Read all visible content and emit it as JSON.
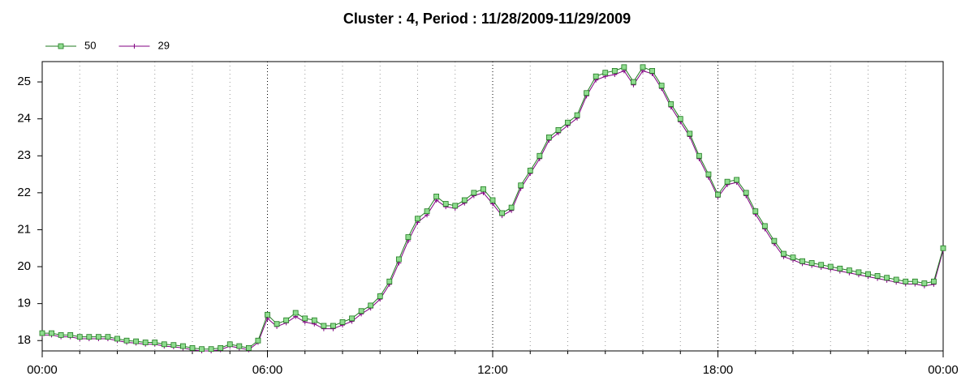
{
  "chart_data": {
    "type": "line",
    "title": "Cluster : 4, Period : 11/28/2009-11/29/2009",
    "x": [
      0,
      0.25,
      0.5,
      0.75,
      1,
      1.25,
      1.5,
      1.75,
      2,
      2.25,
      2.5,
      2.75,
      3,
      3.25,
      3.5,
      3.75,
      4,
      4.25,
      4.5,
      4.75,
      5,
      5.25,
      5.5,
      5.75,
      6,
      6.25,
      6.5,
      6.75,
      7,
      7.25,
      7.5,
      7.75,
      8,
      8.25,
      8.5,
      8.75,
      9,
      9.25,
      9.5,
      9.75,
      10,
      10.25,
      10.5,
      10.75,
      11,
      11.25,
      11.5,
      11.75,
      12,
      12.25,
      12.5,
      12.75,
      13,
      13.25,
      13.5,
      13.75,
      14,
      14.25,
      14.5,
      14.75,
      15,
      15.25,
      15.5,
      15.75,
      16,
      16.25,
      16.5,
      16.75,
      17,
      17.25,
      17.5,
      17.75,
      18,
      18.25,
      18.5,
      18.75,
      19,
      19.25,
      19.5,
      19.75,
      20,
      20.25,
      20.5,
      20.75,
      21,
      21.25,
      21.5,
      21.75,
      22,
      22.25,
      22.5,
      22.75,
      23,
      23.25,
      23.5,
      23.75,
      24
    ],
    "series": [
      {
        "name": "50",
        "color": "#1f7a1f",
        "marker": "square",
        "marker_fill": "#8fdc8f",
        "values": [
          18.2,
          18.2,
          18.15,
          18.15,
          18.1,
          18.1,
          18.1,
          18.1,
          18.05,
          18.0,
          17.98,
          17.95,
          17.95,
          17.9,
          17.88,
          17.85,
          17.8,
          17.77,
          17.77,
          17.8,
          17.9,
          17.85,
          17.8,
          18.0,
          18.7,
          18.45,
          18.55,
          18.75,
          18.6,
          18.55,
          18.4,
          18.4,
          18.5,
          18.6,
          18.8,
          18.95,
          19.2,
          19.6,
          20.2,
          20.8,
          21.3,
          21.5,
          21.9,
          21.7,
          21.65,
          21.8,
          22.0,
          22.1,
          21.8,
          21.45,
          21.6,
          22.2,
          22.6,
          23.0,
          23.5,
          23.7,
          23.9,
          24.1,
          24.7,
          25.15,
          25.25,
          25.3,
          25.4,
          25.0,
          25.4,
          25.3,
          24.9,
          24.4,
          24.0,
          23.6,
          23.0,
          22.5,
          21.95,
          22.3,
          22.35,
          22.0,
          21.5,
          21.1,
          20.7,
          20.35,
          20.25,
          20.15,
          20.1,
          20.05,
          20.0,
          19.95,
          19.9,
          19.85,
          19.8,
          19.75,
          19.7,
          19.65,
          19.6,
          19.6,
          19.55,
          19.6,
          20.5
        ]
      },
      {
        "name": "29",
        "color": "#800080",
        "marker": "plus",
        "values": [
          18.15,
          18.15,
          18.1,
          18.1,
          18.05,
          18.05,
          18.05,
          18.05,
          18.0,
          17.95,
          17.93,
          17.9,
          17.9,
          17.85,
          17.83,
          17.8,
          17.75,
          17.72,
          17.72,
          17.75,
          17.85,
          17.8,
          17.75,
          17.95,
          18.6,
          18.38,
          18.48,
          18.65,
          18.5,
          18.45,
          18.32,
          18.32,
          18.42,
          18.52,
          18.72,
          18.88,
          19.12,
          19.52,
          20.1,
          20.7,
          21.2,
          21.4,
          21.8,
          21.62,
          21.58,
          21.72,
          21.92,
          22.0,
          21.7,
          21.38,
          21.52,
          22.12,
          22.52,
          22.92,
          23.42,
          23.62,
          23.82,
          24.02,
          24.62,
          25.05,
          25.15,
          25.2,
          25.3,
          24.92,
          25.3,
          25.22,
          24.82,
          24.32,
          23.92,
          23.52,
          22.92,
          22.42,
          21.88,
          22.22,
          22.28,
          21.92,
          21.42,
          21.02,
          20.62,
          20.27,
          20.18,
          20.08,
          20.03,
          19.98,
          19.93,
          19.88,
          19.83,
          19.78,
          19.73,
          19.68,
          19.63,
          19.58,
          19.53,
          19.53,
          19.48,
          19.52,
          20.45
        ]
      }
    ],
    "xlim": [
      0,
      24
    ],
    "xticks": [
      {
        "value": 0,
        "label": "00:00"
      },
      {
        "value": 6,
        "label": "06:00"
      },
      {
        "value": 12,
        "label": "12:00"
      },
      {
        "value": 18,
        "label": "18:00"
      },
      {
        "value": 24,
        "label": "00:00"
      }
    ],
    "xminorticks": [
      1,
      2,
      3,
      4,
      5,
      7,
      8,
      9,
      10,
      11,
      13,
      14,
      15,
      16,
      17,
      19,
      20,
      21,
      22,
      23
    ],
    "ylim": [
      17.72,
      25.55
    ],
    "yticks": [
      18,
      19,
      20,
      21,
      22,
      23,
      24,
      25
    ],
    "grid": true,
    "legend": "top-left"
  }
}
